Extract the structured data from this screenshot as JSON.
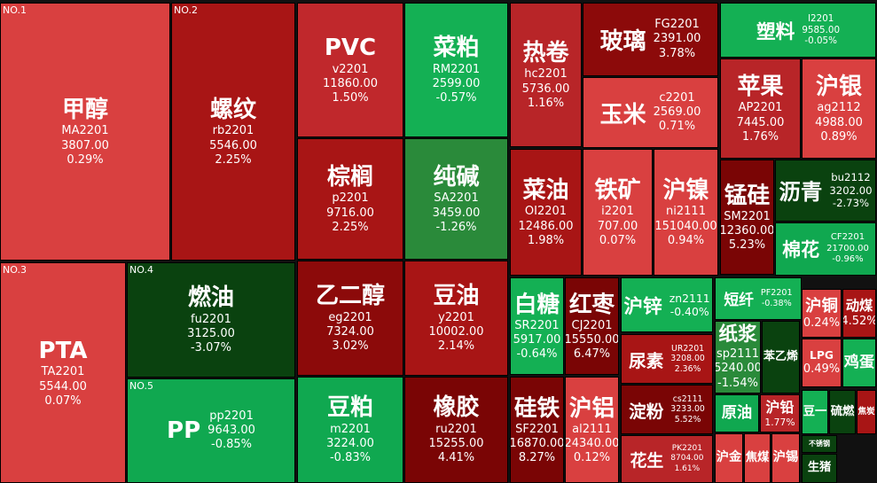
{
  "tiles": [
    {
      "name": "甲醇",
      "code": "MA2201",
      "price": "3807.00",
      "change": "0.29%",
      "rank": "NO.1",
      "color": "#d94040"
    },
    {
      "name": "PTA",
      "code": "TA2201",
      "price": "5544.00",
      "change": "0.07%",
      "rank": "NO.3",
      "color": "#d94040"
    },
    {
      "name": "螺纹",
      "code": "rb2201",
      "price": "5546.00",
      "change": "2.25%",
      "rank": "NO.2",
      "color": "#a81515"
    },
    {
      "name": "燃油",
      "code": "fu2201",
      "price": "3125.00",
      "change": "-3.07%",
      "rank": "NO.4",
      "color": "#0a420f"
    },
    {
      "name": "PP",
      "code": "pp2201",
      "price": "9643.00",
      "change": "-0.85%",
      "rank": "NO.5",
      "color": "#10a850"
    },
    {
      "name": "PVC",
      "code": "v2201",
      "price": "11860.00",
      "change": "1.50%",
      "color": "#c0282c"
    },
    {
      "name": "棕榈",
      "code": "p2201",
      "price": "9716.00",
      "change": "2.25%",
      "color": "#a81515"
    },
    {
      "name": "乙二醇",
      "code": "eg2201",
      "price": "7324.00",
      "change": "3.02%",
      "color": "#8c0a0a"
    },
    {
      "name": "豆粕",
      "code": "m2201",
      "price": "3224.00",
      "change": "-0.83%",
      "color": "#10a850"
    },
    {
      "name": "菜粕",
      "code": "RM2201",
      "price": "2599.00",
      "change": "-0.57%",
      "color": "#14b054"
    },
    {
      "name": "纯碱",
      "code": "SA2201",
      "price": "3459.00",
      "change": "-1.26%",
      "color": "#2a8a3a"
    },
    {
      "name": "豆油",
      "code": "y2201",
      "price": "10002.00",
      "change": "2.14%",
      "color": "#a81515"
    },
    {
      "name": "橡胶",
      "code": "ru2201",
      "price": "15255.00",
      "change": "4.41%",
      "color": "#7a0505"
    },
    {
      "name": "热卷",
      "code": "hc2201",
      "price": "5736.00",
      "change": "1.16%",
      "color": "#b82528"
    },
    {
      "name": "菜油",
      "code": "OI2201",
      "price": "12486.00",
      "change": "1.98%",
      "color": "#a81515"
    },
    {
      "name": "玻璃",
      "code": "FG2201",
      "price": "2391.00",
      "change": "3.78%",
      "color": "#8c0a0a"
    },
    {
      "name": "玉米",
      "code": "c2201",
      "price": "2569.00",
      "change": "0.71%",
      "color": "#d94040"
    },
    {
      "name": "铁矿",
      "code": "i2201",
      "price": "707.00",
      "change": "0.07%",
      "color": "#d94040"
    },
    {
      "name": "沪镍",
      "code": "ni2111",
      "price": "151040.00",
      "change": "0.94%",
      "color": "#d94040"
    },
    {
      "name": "塑料",
      "code": "I2201",
      "price": "9585.00",
      "change": "-0.05%",
      "color": "#14b054"
    },
    {
      "name": "苹果",
      "code": "AP2201",
      "price": "7445.00",
      "change": "1.76%",
      "color": "#b82528"
    },
    {
      "name": "沪银",
      "code": "ag2112",
      "price": "4988.00",
      "change": "0.89%",
      "color": "#d94040"
    },
    {
      "name": "锰硅",
      "code": "SM2201",
      "price": "12360.00",
      "change": "5.23%",
      "color": "#7a0505"
    },
    {
      "name": "沥青",
      "code": "bu2112",
      "price": "3202.00",
      "change": "-2.73%",
      "color": "#0a420f"
    },
    {
      "name": "棉花",
      "code": "CF2201",
      "price": "21700.00",
      "change": "-0.96%",
      "color": "#10a850"
    },
    {
      "name": "白糖",
      "code": "SR2201",
      "price": "5917.00",
      "change": "-0.64%",
      "color": "#14b054"
    },
    {
      "name": "红枣",
      "code": "CJ2201",
      "price": "15550.00",
      "change": "6.47%",
      "color": "#7a0505"
    },
    {
      "name": "沪锌",
      "code": "zn2111",
      "change": "-0.40%",
      "color": "#14b054"
    },
    {
      "name": "尿素",
      "code": "UR2201",
      "price": "3208.00",
      "change": "2.36%",
      "color": "#a81515"
    },
    {
      "name": "淀粉",
      "code": "cs2111",
      "price": "3233.00",
      "change": "5.52%",
      "color": "#7a0505"
    },
    {
      "name": "花生",
      "code": "PK2201",
      "price": "8704.00",
      "change": "1.61%",
      "color": "#b82528"
    },
    {
      "name": "硅铁",
      "code": "SF2201",
      "price": "16870.00",
      "change": "8.27%",
      "color": "#7a0505"
    },
    {
      "name": "沪铝",
      "code": "al2111",
      "price": "24340.00",
      "change": "0.12%",
      "color": "#d94040"
    },
    {
      "name": "短纤",
      "code": "PF2201",
      "change": "-0.38%",
      "color": "#14b054"
    },
    {
      "name": "纸浆",
      "code": "sp2111",
      "price": "5240.00",
      "change": "-1.54%",
      "color": "#2a8a3a"
    },
    {
      "name": "苯乙烯",
      "color": "#0a420f"
    },
    {
      "name": "原油",
      "color": "#10a850"
    },
    {
      "name": "沪铅",
      "change": "1.77%",
      "color": "#b82528"
    },
    {
      "name": "沪金",
      "color": "#d94040"
    },
    {
      "name": "焦煤",
      "color": "#d94040"
    },
    {
      "name": "沪锡",
      "color": "#d94040"
    },
    {
      "name": "沪铜",
      "change": "0.24%",
      "color": "#d94040"
    },
    {
      "name": "动煤",
      "change": "4.52%",
      "color": "#a81515"
    },
    {
      "name": "LPG",
      "change": "0.49%",
      "color": "#d94040"
    },
    {
      "name": "鸡蛋",
      "color": "#14b054"
    },
    {
      "name": "豆一",
      "color": "#14b054"
    },
    {
      "name": "硫燃",
      "color": "#0a420f"
    },
    {
      "name": "焦炭",
      "color": "#a81515"
    },
    {
      "name": "不锈钢",
      "color": "#0a420f"
    },
    {
      "name": "生猪",
      "color": "#0a420f"
    }
  ]
}
